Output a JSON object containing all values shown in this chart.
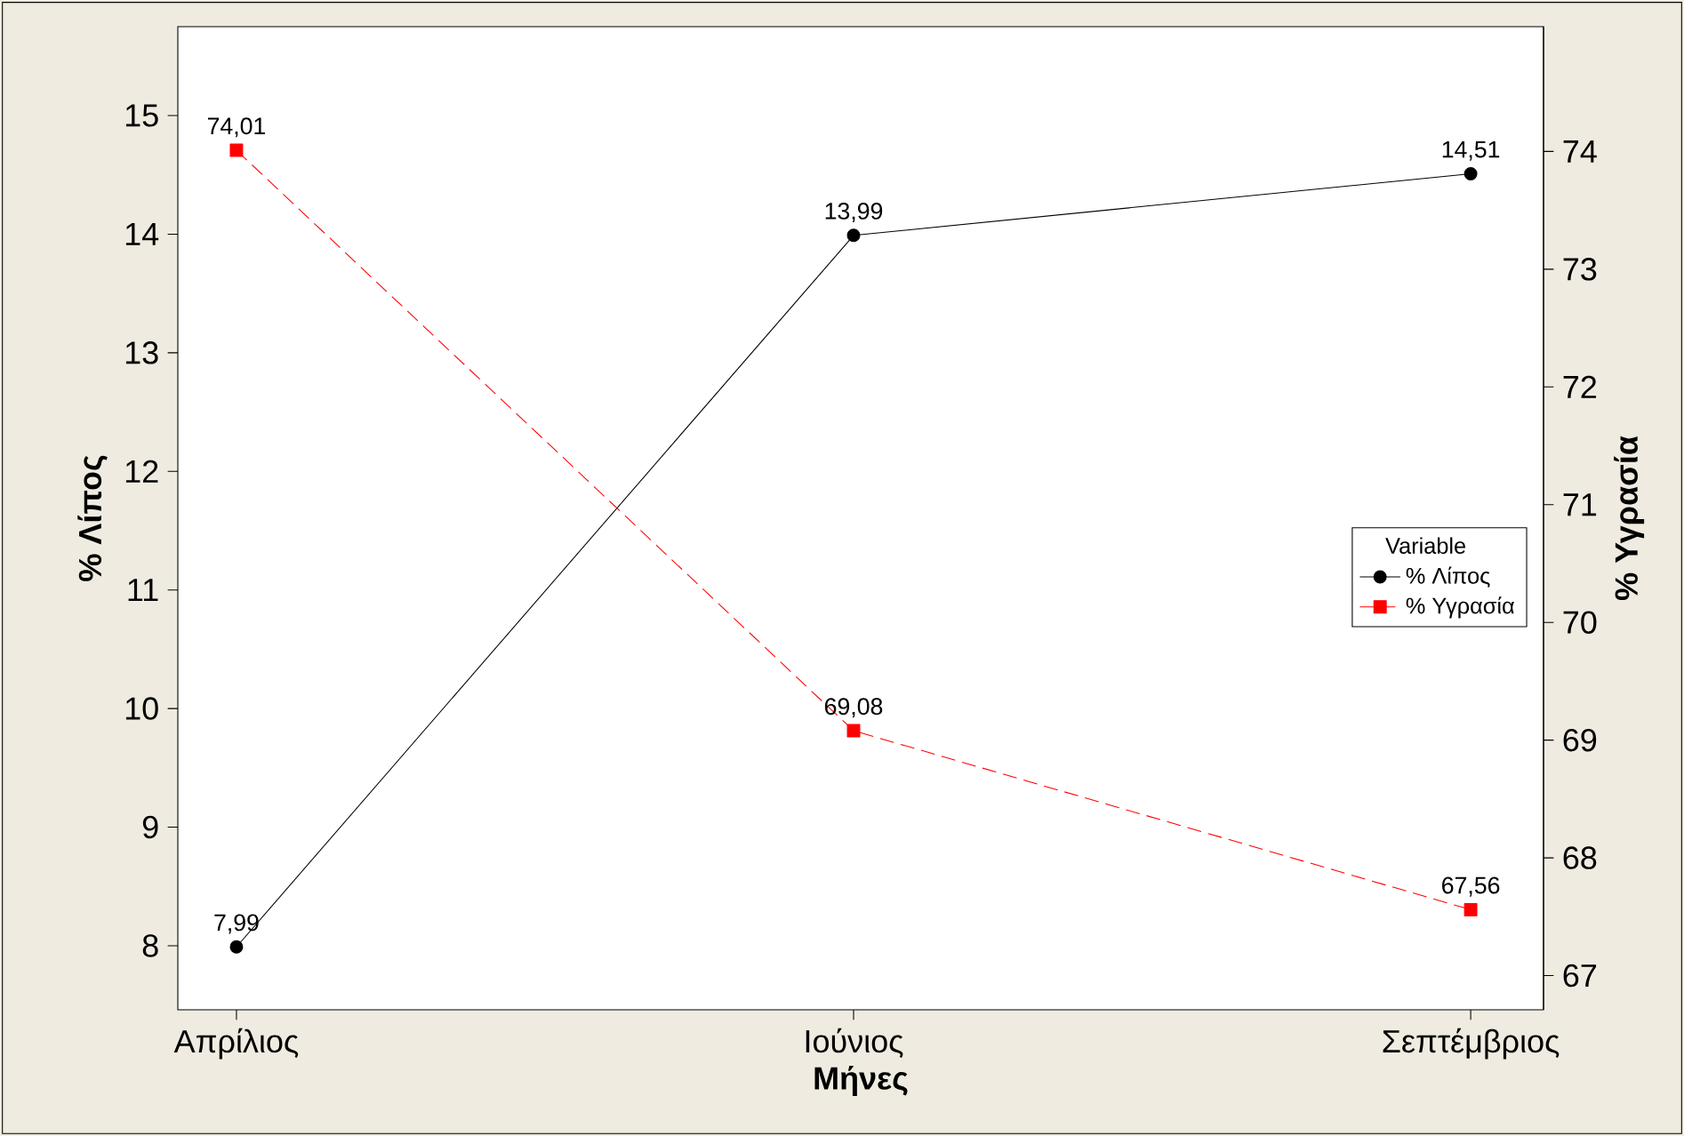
{
  "chart_data": {
    "type": "line",
    "xlabel": "Μήνες",
    "ylabel": "% Λίπος",
    "y2label": "% Υγρασία",
    "legend_title": "Variable",
    "categories": [
      "Απρίλιος",
      "Ιούνιος",
      "Σεπτέμβριος"
    ],
    "series": [
      {
        "name": "% Λίπος",
        "color": "#000000",
        "values": [
          7.99,
          13.99,
          14.51
        ],
        "value_labels": [
          "7,99",
          "13,99",
          "14,51"
        ],
        "marker": "circle",
        "line_style": "solid"
      },
      {
        "name": "% Υγρασία",
        "color": "#ff0000",
        "values": [
          74.01,
          69.08,
          67.56
        ],
        "value_labels": [
          "74,01",
          "69,08",
          "67,56"
        ],
        "marker": "square",
        "line_style": "dashed",
        "axis": "y2"
      }
    ],
    "ylim": [
      7.46,
      15.75
    ],
    "yticks": [
      8,
      9,
      10,
      11,
      12,
      13,
      14,
      15
    ],
    "y2lim": [
      66.71,
      75.06
    ],
    "y2ticks": [
      67,
      68,
      69,
      70,
      71,
      72,
      73,
      74
    ],
    "legend": "right",
    "grid": false
  }
}
